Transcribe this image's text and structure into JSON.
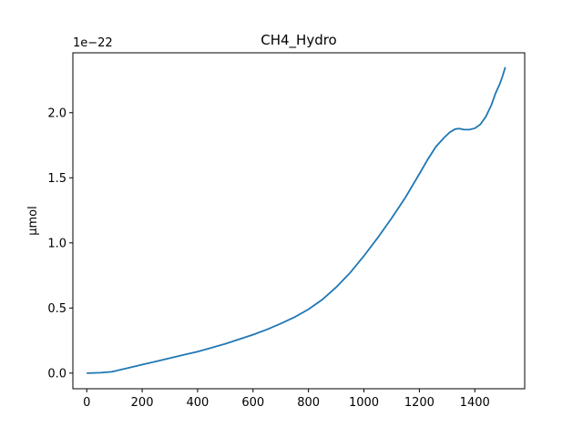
{
  "chart_data": {
    "type": "line",
    "title": "CH4_Hydro",
    "xlabel": "",
    "ylabel": "µmol",
    "y_offset_label": "1e−22",
    "xlim": [
      -50,
      1580
    ],
    "ylim": [
      -0.12,
      2.46
    ],
    "xticks": [
      0,
      200,
      400,
      600,
      800,
      1000,
      1200,
      1400
    ],
    "xtick_labels": [
      "0",
      "200",
      "400",
      "600",
      "800",
      "1000",
      "1200",
      "1400"
    ],
    "yticks": [
      0.0,
      0.5,
      1.0,
      1.5,
      2.0
    ],
    "ytick_labels": [
      "0.0",
      "0.5",
      "1.0",
      "1.5",
      "2.0"
    ],
    "grid": false,
    "line_color": "#1f77b4",
    "series": [
      {
        "x": [
          0,
          50,
          90,
          120,
          150,
          200,
          250,
          300,
          350,
          400,
          450,
          500,
          550,
          600,
          650,
          700,
          750,
          800,
          850,
          900,
          950,
          1000,
          1050,
          1100,
          1150,
          1200,
          1230,
          1260,
          1290,
          1310,
          1330,
          1345,
          1360,
          1380,
          1400,
          1420,
          1440,
          1460,
          1475,
          1490,
          1500,
          1510
        ],
        "y": [
          0.0,
          0.003,
          0.01,
          0.025,
          0.04,
          0.065,
          0.09,
          0.115,
          0.14,
          0.165,
          0.195,
          0.225,
          0.26,
          0.295,
          0.335,
          0.38,
          0.43,
          0.49,
          0.565,
          0.66,
          0.77,
          0.9,
          1.04,
          1.19,
          1.35,
          1.53,
          1.64,
          1.74,
          1.81,
          1.85,
          1.875,
          1.878,
          1.87,
          1.87,
          1.88,
          1.91,
          1.97,
          2.06,
          2.15,
          2.22,
          2.28,
          2.35
        ]
      }
    ]
  }
}
